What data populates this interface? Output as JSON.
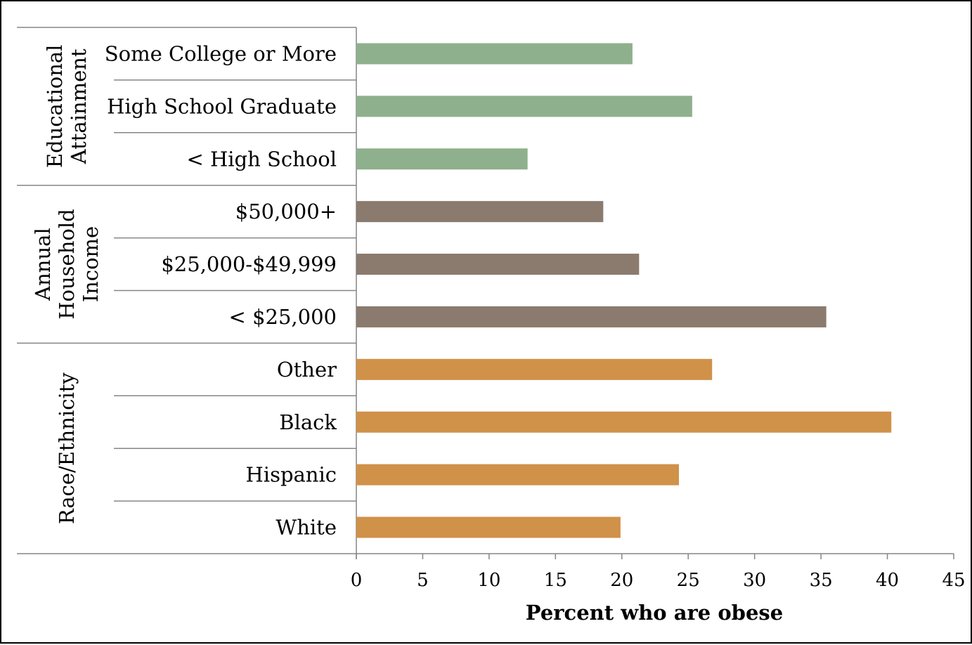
{
  "chart_data": {
    "type": "bar",
    "orientation": "horizontal",
    "xlabel": "Percent who are obese",
    "xlim": [
      0,
      45
    ],
    "xticks": [
      "0",
      "5",
      "10",
      "15",
      "20",
      "25",
      "30",
      "35",
      "40",
      "45"
    ],
    "grid": false,
    "groups": [
      {
        "name": "Educational Attainment",
        "name_lines": [
          "Educational",
          "Attainment"
        ],
        "color": "#8fb08c",
        "categories": [
          "Some College or More",
          "High School Graduate",
          "< High School"
        ],
        "values": [
          20.8,
          25.3,
          12.9
        ]
      },
      {
        "name": "Annual Household Income",
        "name_lines": [
          "Annual",
          "Household",
          "Income"
        ],
        "color": "#8b7b6e",
        "categories": [
          "$50,000+",
          "$25,000-$49,999",
          "< $25,000"
        ],
        "values": [
          18.6,
          21.3,
          35.4
        ]
      },
      {
        "name": "Race/Ethnicity",
        "name_lines": [
          "Race/Ethnicity"
        ],
        "color": "#d09149",
        "categories": [
          "Other",
          "Black",
          "Hispanic",
          "White"
        ],
        "values": [
          26.8,
          40.3,
          24.3,
          19.9
        ]
      }
    ]
  }
}
